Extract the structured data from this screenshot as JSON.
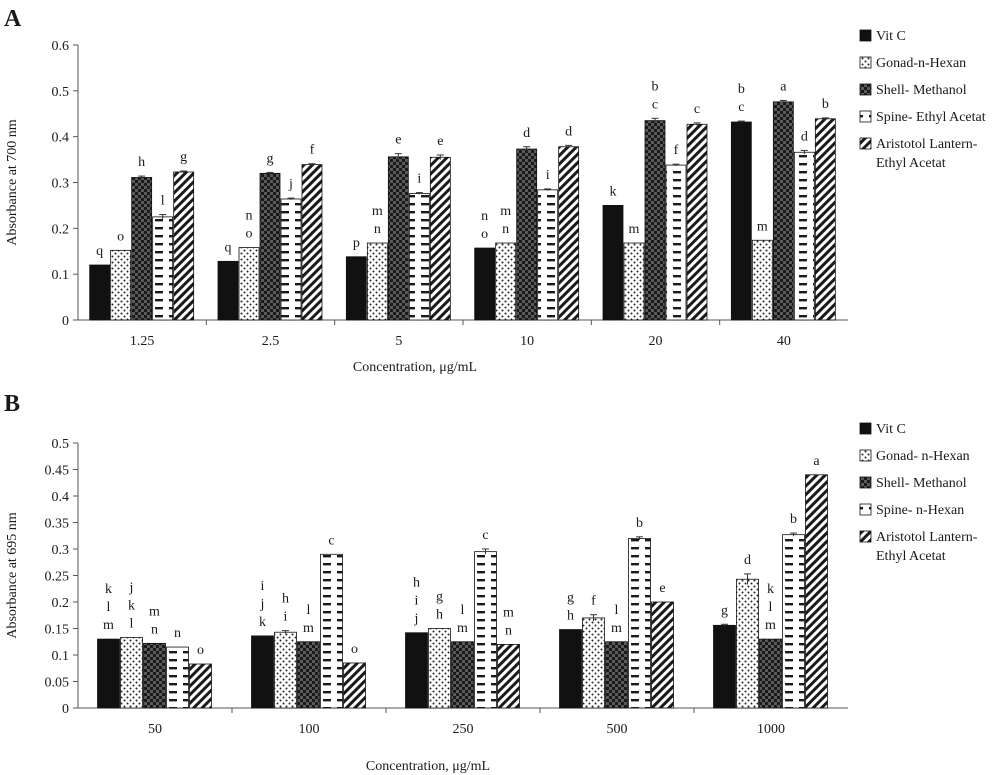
{
  "chart_data": [
    {
      "panel": "A",
      "type": "bar",
      "xlabel": "Concentration, μg/mL",
      "ylabel": "Absorbance at 700 nm",
      "ylim": [
        0,
        0.6
      ],
      "yticks": [
        "0",
        "0.1",
        "0.2",
        "0.3",
        "0.4",
        "0.5",
        "0.6"
      ],
      "ytick_values": [
        0,
        0.1,
        0.2,
        0.3,
        0.4,
        0.5,
        0.6
      ],
      "grid": false,
      "legend_position": "right",
      "categories": [
        "1.25",
        "2.5",
        "5",
        "10",
        "20",
        "40"
      ],
      "series": [
        {
          "name": "Vit C",
          "pattern": "solid",
          "values": [
            0.12,
            0.128,
            0.138,
            0.157,
            0.25,
            0.432
          ],
          "errors": [
            0,
            0,
            0,
            0,
            0,
            0.002
          ],
          "letters": [
            "q",
            "q",
            "p",
            "n\no",
            "k",
            "b\nc"
          ]
        },
        {
          "name": "Gonad-n-Hexan",
          "pattern": "dots",
          "values": [
            0.152,
            0.158,
            0.168,
            0.168,
            0.168,
            0.174
          ],
          "errors": [
            0,
            0,
            0,
            0,
            0,
            0
          ],
          "letters": [
            "o",
            "n\no",
            "m\nn",
            "m\nn",
            "m",
            "m"
          ]
        },
        {
          "name": "Shell- Methanol",
          "pattern": "checker",
          "values": [
            0.311,
            0.32,
            0.356,
            0.373,
            0.435,
            0.476
          ],
          "errors": [
            0.003,
            0.002,
            0.007,
            0.005,
            0.005,
            0.003
          ],
          "letters": [
            "h",
            "g",
            "e",
            "d",
            "b\nc",
            "a"
          ]
        },
        {
          "name": "Spine- Ethyl Acetat",
          "pattern": "dashes",
          "values": [
            0.225,
            0.264,
            0.276,
            0.284,
            0.338,
            0.366
          ],
          "errors": [
            0.005,
            0.002,
            0.002,
            0.002,
            0.002,
            0.004
          ],
          "letters": [
            "l",
            "j",
            "i",
            "i",
            "f",
            "d"
          ]
        },
        {
          "name": "Aristotol Lantern-\nEthyl Acetat",
          "pattern": "diagonal",
          "values": [
            0.323,
            0.339,
            0.355,
            0.378,
            0.427,
            0.439
          ],
          "errors": [
            0.002,
            0.002,
            0.005,
            0.003,
            0.003,
            0.002
          ],
          "letters": [
            "g",
            "f",
            "e",
            "d",
            "c",
            "b"
          ]
        }
      ]
    },
    {
      "panel": "B",
      "type": "bar",
      "xlabel": "Concentration, μg/mL",
      "ylabel": "Absorbance at 695 nm",
      "ylim": [
        0,
        0.5
      ],
      "yticks": [
        "0",
        "0.05",
        "0.1",
        "0.15",
        "0.2",
        "0.25",
        "0.3",
        "0.35",
        "0.4",
        "0.45",
        "0.5"
      ],
      "ytick_values": [
        0,
        0.05,
        0.1,
        0.15,
        0.2,
        0.25,
        0.3,
        0.35,
        0.4,
        0.45,
        0.5
      ],
      "grid": false,
      "legend_position": "right",
      "categories": [
        "50",
        "100",
        "250",
        "500",
        "1000"
      ],
      "series": [
        {
          "name": "Vit C",
          "pattern": "solid",
          "values": [
            0.13,
            0.136,
            0.142,
            0.148,
            0.156
          ],
          "errors": [
            0,
            0,
            0,
            0,
            0.002
          ],
          "letters": [
            "k\nl\nm",
            "i\nj\nk",
            "h\ni\nj",
            "g\nh",
            "g"
          ]
        },
        {
          "name": "Gonad- n-Hexan",
          "pattern": "dots",
          "values": [
            0.133,
            0.143,
            0.15,
            0.17,
            0.243
          ],
          "errors": [
            0,
            0.003,
            0,
            0.006,
            0.01
          ],
          "letters": [
            "j\nk\nl",
            "h\ni",
            "g\nh",
            "f",
            "d"
          ]
        },
        {
          "name": "Shell- Methanol",
          "pattern": "checker",
          "values": [
            0.122,
            0.125,
            0.125,
            0.125,
            0.13
          ],
          "errors": [
            0,
            0,
            0,
            0,
            0
          ],
          "letters": [
            "m\nn",
            "l\nm",
            "l\nm",
            "l\nm",
            "k\nl\nm"
          ]
        },
        {
          "name": "Spine- n-Hexan",
          "pattern": "dashes",
          "values": [
            0.115,
            0.29,
            0.295,
            0.32,
            0.327
          ],
          "errors": [
            0,
            0,
            0.005,
            0.003,
            0.003
          ],
          "letters": [
            "n",
            "c",
            "c",
            "b",
            "b"
          ]
        },
        {
          "name": "Aristotol Lantern-\nEthyl Acetat",
          "pattern": "diagonal",
          "values": [
            0.083,
            0.085,
            0.12,
            0.2,
            0.44
          ],
          "errors": [
            0,
            0,
            0,
            0,
            0
          ],
          "letters": [
            "o",
            "o",
            "m\nn",
            "e",
            "a"
          ]
        }
      ]
    }
  ]
}
